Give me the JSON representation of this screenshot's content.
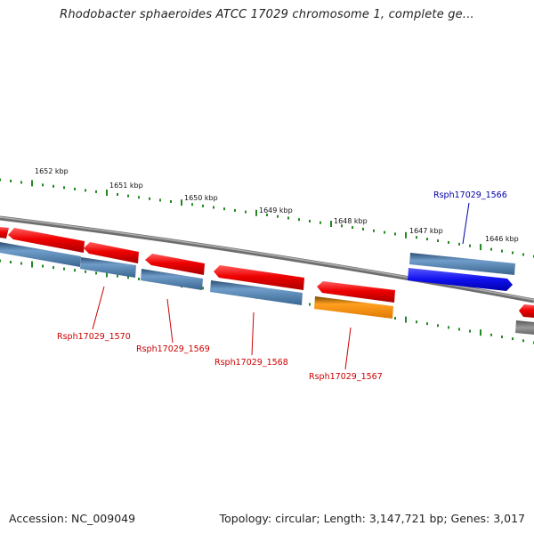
{
  "header": {
    "title": "Rhodobacter sphaeroides ATCC 17029 chromosome 1, complete ge..."
  },
  "footer": {
    "accession": "Accession: NC_009049",
    "summary": "Topology: circular; Length: 3,147,721 bp; Genes: 3,017"
  },
  "scale": {
    "unit": "kbp",
    "tick_labels": [
      "1652 kbp",
      "1651 kbp",
      "1650 kbp",
      "1649 kbp",
      "1648 kbp",
      "1647 kbp",
      "1646 kbp"
    ]
  },
  "genes": [
    {
      "locus": "Rsph17029_1570",
      "strand": "-",
      "color": "#dd0000"
    },
    {
      "locus": "Rsph17029_1569",
      "strand": "-",
      "color": "#dd0000"
    },
    {
      "locus": "Rsph17029_1568",
      "strand": "-",
      "color": "#dd0000"
    },
    {
      "locus": "Rsph17029_1567",
      "strand": "-",
      "color": "#dd0000"
    },
    {
      "locus": "Rsph17029_1566",
      "strand": "+",
      "color": "#0000cc"
    }
  ],
  "colors": {
    "backbone": "#808080",
    "gene_minus": "#ee1111",
    "gene_plus": "#1111ee",
    "cds": "#4f7fb0",
    "highlight": "#ff8c00",
    "ticks": "#228822",
    "label_red": "#cc0000",
    "label_blue": "#0000aa"
  }
}
